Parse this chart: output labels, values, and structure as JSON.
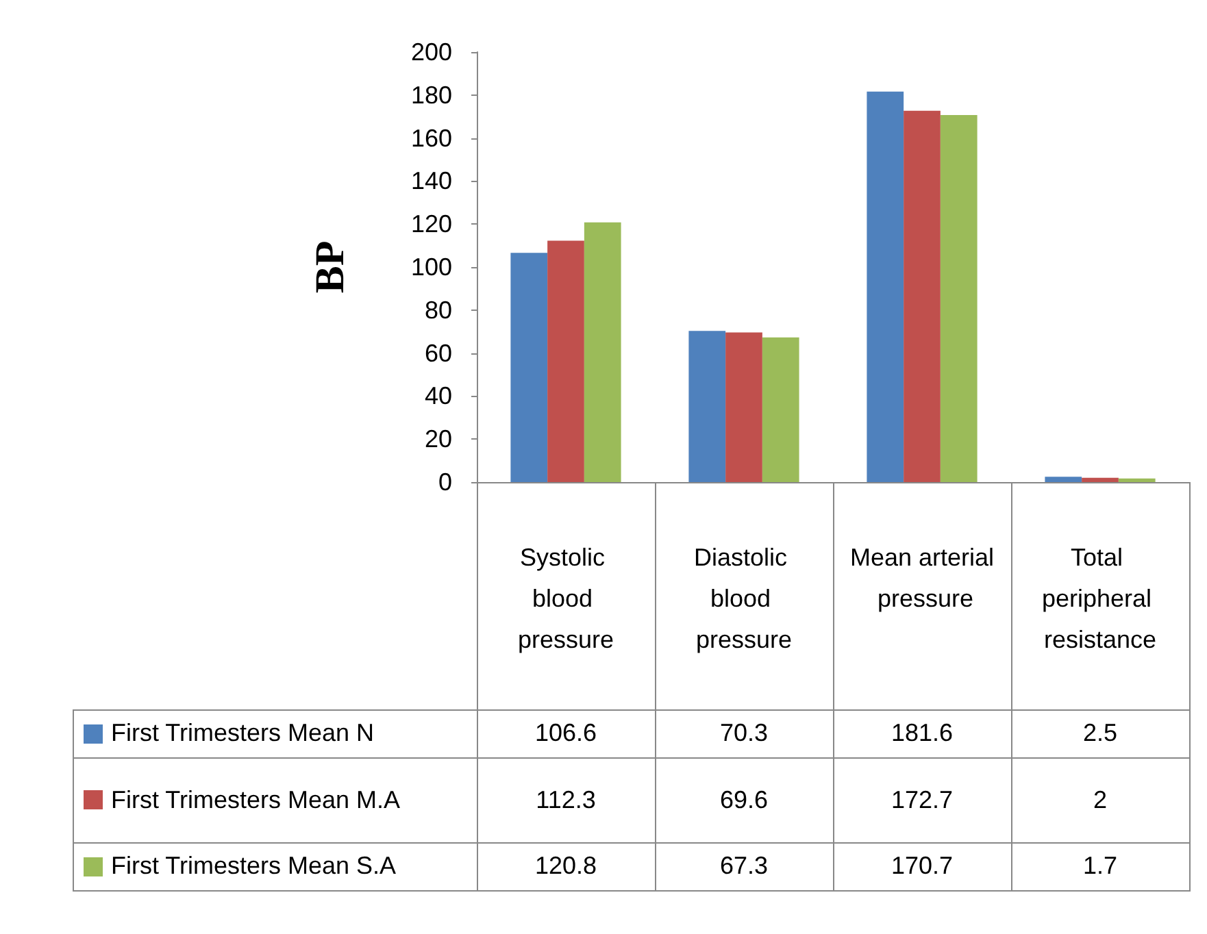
{
  "chart_data": {
    "type": "bar",
    "ylabel": "BP",
    "categories": [
      "Systolic blood pressure",
      "Diastolic blood pressure",
      "Mean arterial pressure",
      "Total peripheral resistance"
    ],
    "series": [
      {
        "name": "First Trimesters Mean N",
        "color": "#4f81bd",
        "values": [
          106.6,
          70.3,
          181.6,
          2.5
        ]
      },
      {
        "name": "First Trimesters Mean M.A",
        "color": "#c0504d",
        "values": [
          112.3,
          69.6,
          172.7,
          2
        ]
      },
      {
        "name": "First Trimesters Mean S.A",
        "color": "#9bbb59",
        "values": [
          120.8,
          67.3,
          170.7,
          1.7
        ]
      }
    ],
    "ylim": [
      0,
      200
    ],
    "yticks": [
      0,
      20,
      40,
      60,
      80,
      100,
      120,
      140,
      160,
      180,
      200
    ],
    "grid": false,
    "legend": "bottom left",
    "data_labels": true
  }
}
